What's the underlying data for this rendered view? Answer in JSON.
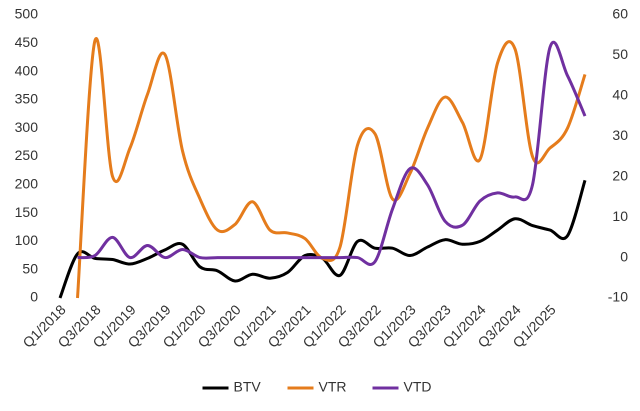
{
  "chart_data": {
    "type": "line",
    "categories": [
      "Q1/2018",
      null,
      "Q3/2018",
      null,
      "Q1/2019",
      null,
      "Q3/2019",
      null,
      "Q1/2020",
      null,
      "Q3/2020",
      null,
      "Q1/2021",
      null,
      "Q3/2021",
      null,
      "Q1/2022",
      null,
      "Q3/2022",
      null,
      "Q1/2023",
      null,
      "Q3/2023",
      null,
      "Q1/2024",
      null,
      "Q3/2024",
      null,
      "Q1/2025",
      null,
      null
    ],
    "series": [
      {
        "name": "BTV",
        "color": "#000000",
        "values": [
          0,
          78,
          70,
          68,
          60,
          70,
          85,
          95,
          55,
          48,
          30,
          42,
          35,
          45,
          75,
          70,
          40,
          100,
          88,
          88,
          75,
          90,
          103,
          95,
          100,
          120,
          140,
          128,
          120,
          110,
          208
        ]
      },
      {
        "name": "VTR",
        "color": "#e57c1c",
        "values": [
          null,
          0,
          455,
          215,
          265,
          360,
          430,
          260,
          175,
          120,
          130,
          170,
          120,
          115,
          105,
          70,
          90,
          270,
          290,
          175,
          220,
          300,
          355,
          310,
          245,
          415,
          440,
          250,
          265,
          300,
          395
        ]
      },
      {
        "name": "VTD",
        "color": "#7030a0",
        "axis": "y2",
        "values": [
          null,
          0,
          0.5,
          5,
          0,
          3,
          0,
          2,
          0,
          0,
          0,
          0,
          0,
          0,
          0,
          0,
          0,
          0,
          -1,
          12,
          22,
          18,
          9,
          8,
          14,
          16,
          15,
          18,
          52,
          45,
          35
        ]
      }
    ],
    "ylim": [
      0,
      500
    ],
    "yticks": [
      0,
      50,
      100,
      150,
      200,
      250,
      300,
      350,
      400,
      450,
      500
    ],
    "y2lim": [
      -10,
      60
    ],
    "y2ticks": [
      -10,
      0,
      10,
      20,
      30,
      40,
      50,
      60
    ],
    "grid": false,
    "legend": "bottom"
  }
}
